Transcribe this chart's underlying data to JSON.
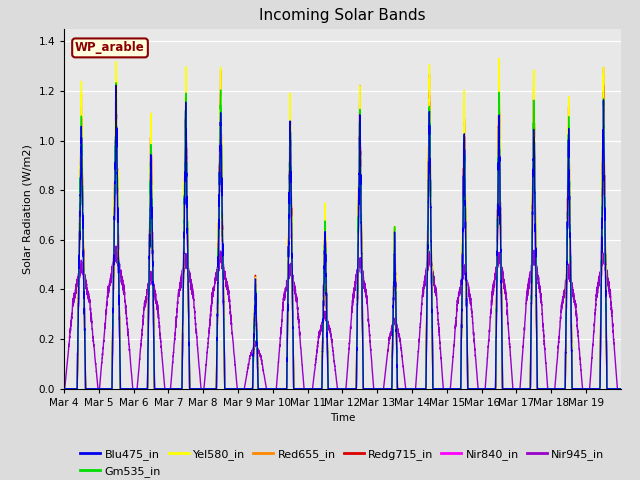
{
  "title": "Incoming Solar Bands",
  "ylabel": "Solar Radiation (W/m2)",
  "xlabel": "Time",
  "location_label": "WP_arable",
  "ylim": [
    0,
    1.45
  ],
  "yticks": [
    0.0,
    0.2,
    0.4,
    0.6,
    0.8,
    1.0,
    1.2,
    1.4
  ],
  "fig_facecolor": "#dcdcdc",
  "ax_facecolor": "#e8e8e8",
  "series": [
    {
      "name": "Blu475_in",
      "color": "#0000ee",
      "lw": 1.0,
      "zorder": 7
    },
    {
      "name": "Gm535_in",
      "color": "#00dd00",
      "lw": 1.0,
      "zorder": 6
    },
    {
      "name": "Yel580_in",
      "color": "#ffff00",
      "lw": 1.0,
      "zorder": 5
    },
    {
      "name": "Red655_in",
      "color": "#ff8800",
      "lw": 1.0,
      "zorder": 4
    },
    {
      "name": "Redg715_in",
      "color": "#dd0000",
      "lw": 1.0,
      "zorder": 3
    },
    {
      "name": "Nir840_in",
      "color": "#ff00ff",
      "lw": 1.0,
      "zorder": 2
    },
    {
      "name": "Nir945_in",
      "color": "#9900cc",
      "lw": 1.0,
      "zorder": 1
    }
  ],
  "num_days": 16,
  "points_per_day": 288,
  "day_peaks": [
    1.25,
    1.38,
    1.15,
    1.32,
    1.34,
    0.46,
    1.24,
    0.76,
    1.3,
    0.7,
    1.35,
    1.22,
    1.35,
    1.35,
    1.2,
    1.35
  ],
  "peak_widths": [
    0.12,
    0.12,
    0.1,
    0.11,
    0.12,
    0.08,
    0.1,
    0.09,
    0.1,
    0.08,
    0.1,
    0.1,
    0.1,
    0.1,
    0.1,
    0.1
  ],
  "legend_fontsize": 8,
  "title_fontsize": 11,
  "tick_fontsize": 7.5
}
